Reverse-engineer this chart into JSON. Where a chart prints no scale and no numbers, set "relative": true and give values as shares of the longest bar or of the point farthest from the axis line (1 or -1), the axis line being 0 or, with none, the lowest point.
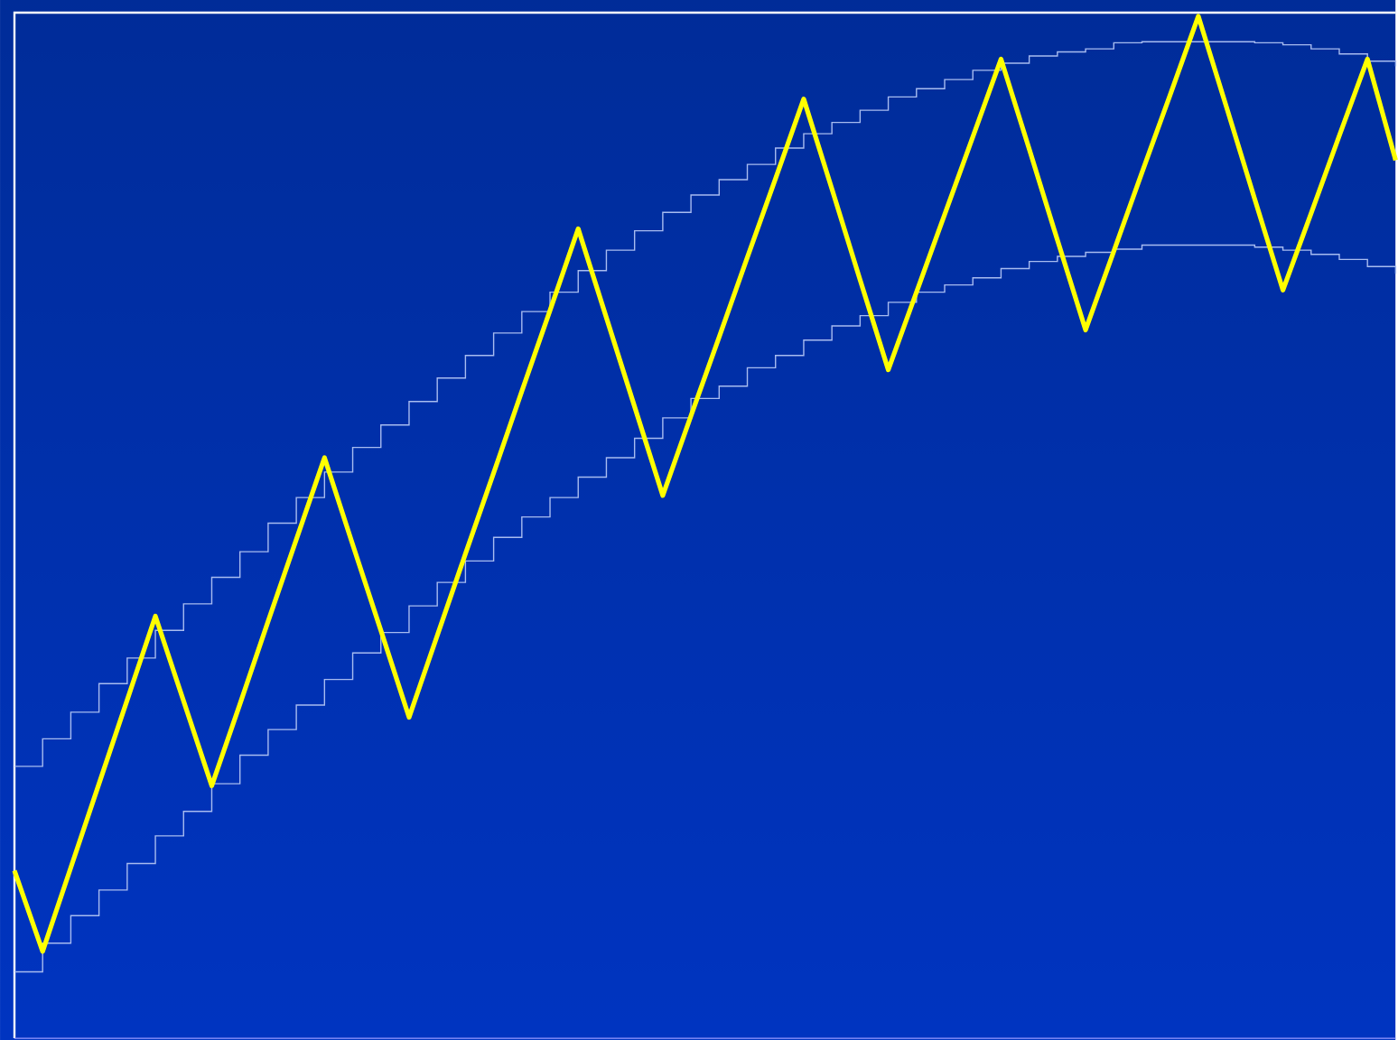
{
  "chart_data": {
    "type": "line",
    "relative": true,
    "categories": [
      null,
      null,
      null,
      null,
      null,
      null,
      null,
      null,
      null,
      null,
      null,
      null,
      null,
      null,
      null,
      null,
      null,
      null,
      null,
      null,
      null,
      null,
      null,
      null,
      null,
      null,
      null,
      null,
      null,
      null,
      null,
      null,
      null,
      null,
      null,
      null,
      null,
      null,
      null,
      null,
      null,
      null,
      null,
      null,
      null,
      null,
      null,
      null,
      null,
      null
    ],
    "series": [
      {
        "type": "step",
        "color": "#a8bcf0",
        "values": [
          0.266,
          0.293,
          0.319,
          0.347,
          0.372,
          0.399,
          0.425,
          0.451,
          0.476,
          0.504,
          0.529,
          0.554,
          0.578,
          0.6,
          0.623,
          0.646,
          0.668,
          0.69,
          0.711,
          0.73,
          0.751,
          0.771,
          0.79,
          0.808,
          0.825,
          0.84,
          0.855,
          0.871,
          0.885,
          0.896,
          0.908,
          0.921,
          0.929,
          0.938,
          0.947,
          0.954,
          0.961,
          0.965,
          0.968,
          0.974,
          0.975,
          0.975,
          0.975,
          0.975,
          0.974,
          0.972,
          0.968,
          0.963,
          0.956,
          0.951
        ]
      },
      {
        "type": "step",
        "color": "#a8bcf0",
        "values": [
          0.065,
          0.093,
          0.12,
          0.145,
          0.171,
          0.198,
          0.222,
          0.249,
          0.277,
          0.302,
          0.326,
          0.351,
          0.377,
          0.397,
          0.423,
          0.446,
          0.467,
          0.49,
          0.51,
          0.529,
          0.549,
          0.568,
          0.587,
          0.607,
          0.626,
          0.638,
          0.656,
          0.668,
          0.683,
          0.697,
          0.707,
          0.72,
          0.73,
          0.737,
          0.744,
          0.753,
          0.76,
          0.765,
          0.769,
          0.772,
          0.776,
          0.776,
          0.776,
          0.776,
          0.774,
          0.771,
          0.767,
          0.762,
          0.755,
          0.748
        ]
      },
      {
        "type": "line",
        "color": "#ffff00",
        "values": [
          0.164,
          0.085,
          0.167,
          0.249,
          0.331,
          0.413,
          0.33,
          0.247,
          0.327,
          0.408,
          0.488,
          0.568,
          0.483,
          0.399,
          0.314,
          0.394,
          0.474,
          0.553,
          0.633,
          0.712,
          0.792,
          0.705,
          0.618,
          0.531,
          0.609,
          0.686,
          0.764,
          0.841,
          0.919,
          0.831,
          0.742,
          0.654,
          0.73,
          0.806,
          0.882,
          0.958,
          0.87,
          0.781,
          0.693,
          0.77,
          0.847,
          0.923,
          1.0,
          0.911,
          0.821,
          0.732,
          0.807,
          0.883,
          0.958,
          0.859
        ]
      }
    ]
  }
}
